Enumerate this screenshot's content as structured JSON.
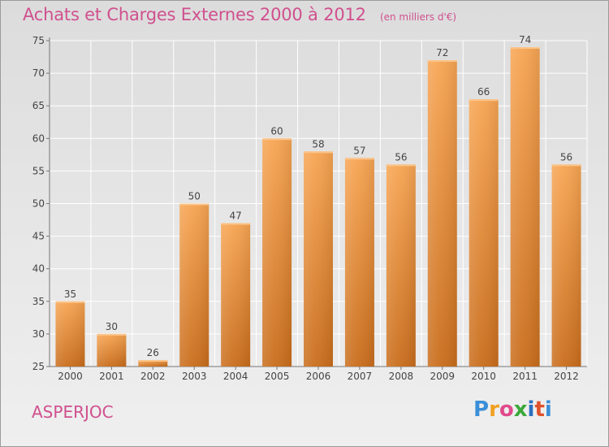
{
  "chart_data": {
    "type": "bar",
    "title": "Achats et Charges Externes 2000 à 2012",
    "subtitle": "(en milliers d'€)",
    "categories": [
      "2000",
      "2001",
      "2002",
      "2003",
      "2004",
      "2005",
      "2006",
      "2007",
      "2008",
      "2009",
      "2010",
      "2011",
      "2012"
    ],
    "values": [
      35,
      30,
      26,
      50,
      47,
      60,
      58,
      57,
      56,
      72,
      66,
      74,
      56
    ],
    "ylim": [
      25,
      75
    ],
    "yticks": [
      25,
      30,
      35,
      40,
      45,
      50,
      55,
      60,
      65,
      70,
      75
    ],
    "xlabel": "",
    "ylabel": "",
    "grid": true,
    "bar_color": "#f0962e"
  },
  "footer": {
    "commune": "ASPERJOC",
    "logo": [
      "P",
      "r",
      "o",
      "x",
      "i",
      "t",
      "i"
    ]
  }
}
